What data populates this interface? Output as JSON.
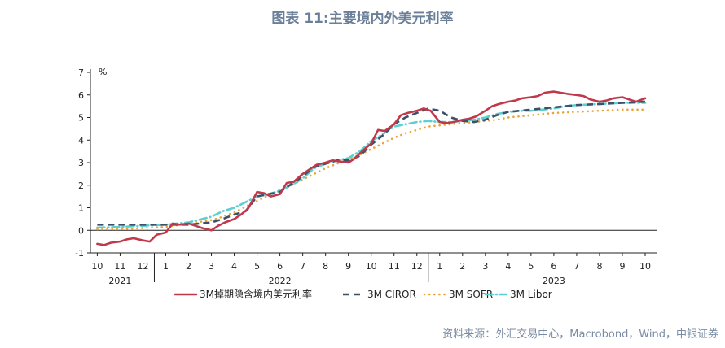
{
  "title": "图表 11:主要境内外美元利率",
  "source": "资料来源：外汇交易中心，Macrobond，Wind，中银证券",
  "colors": {
    "title": "#6b7f99",
    "series_1": "#c0394b",
    "series_2": "#3d4f6b",
    "series_3": "#e8a33c",
    "series_4": "#5bd0d0"
  },
  "chart_data": {
    "type": "line",
    "ylabel": "%",
    "ylim": [
      -1,
      7
    ],
    "yticks": [
      -1,
      0,
      1,
      2,
      3,
      4,
      5,
      6,
      7
    ],
    "xlim": [
      0,
      24.5
    ],
    "xticks": [
      {
        "x": 0,
        "label": "10"
      },
      {
        "x": 1,
        "label": "11"
      },
      {
        "x": 2,
        "label": "12"
      },
      {
        "x": 3,
        "label": "1"
      },
      {
        "x": 4,
        "label": "2"
      },
      {
        "x": 5,
        "label": "3"
      },
      {
        "x": 6,
        "label": "4"
      },
      {
        "x": 7,
        "label": "5"
      },
      {
        "x": 8,
        "label": "6"
      },
      {
        "x": 9,
        "label": "7"
      },
      {
        "x": 10,
        "label": "8"
      },
      {
        "x": 11,
        "label": "9"
      },
      {
        "x": 12,
        "label": "10"
      },
      {
        "x": 13,
        "label": "11"
      },
      {
        "x": 14,
        "label": "12"
      },
      {
        "x": 15,
        "label": "1"
      },
      {
        "x": 16,
        "label": "2"
      },
      {
        "x": 17,
        "label": "3"
      },
      {
        "x": 18,
        "label": "4"
      },
      {
        "x": 19,
        "label": "5"
      },
      {
        "x": 20,
        "label": "6"
      },
      {
        "x": 21,
        "label": "7"
      },
      {
        "x": 22,
        "label": "8"
      },
      {
        "x": 23,
        "label": "9"
      },
      {
        "x": 24,
        "label": "10"
      }
    ],
    "year_labels": [
      {
        "x": 1,
        "label": "2021"
      },
      {
        "x": 8,
        "label": "2022"
      },
      {
        "x": 20,
        "label": "2023"
      }
    ],
    "year_separators": [
      2.5,
      14.5
    ],
    "legend_placement": "bottom",
    "series": [
      {
        "name": "3M掉期隐含境内美元利率",
        "style": "solid",
        "x": [
          0,
          0.3,
          0.6,
          1,
          1.3,
          1.6,
          2,
          2.3,
          2.6,
          3,
          3.3,
          3.6,
          4,
          4.3,
          4.6,
          5,
          5.3,
          5.6,
          6,
          6.3,
          6.6,
          7,
          7.3,
          7.6,
          8,
          8.3,
          8.6,
          9,
          9.3,
          9.6,
          10,
          10.3,
          10.6,
          11,
          11.3,
          11.6,
          12,
          12.3,
          12.6,
          13,
          13.3,
          13.6,
          14,
          14.3,
          14.6,
          15,
          15.3,
          15.6,
          16,
          16.3,
          16.6,
          17,
          17.3,
          17.6,
          18,
          18.3,
          18.6,
          19,
          19.3,
          19.6,
          20,
          20.3,
          20.6,
          21,
          21.3,
          21.6,
          22,
          22.3,
          22.6,
          23,
          23.3,
          23.6,
          24
        ],
        "values": [
          -0.6,
          -0.65,
          -0.55,
          -0.5,
          -0.4,
          -0.35,
          -0.45,
          -0.5,
          -0.2,
          -0.1,
          0.3,
          0.25,
          0.3,
          0.2,
          0.1,
          0.0,
          0.2,
          0.35,
          0.5,
          0.7,
          0.95,
          1.7,
          1.65,
          1.5,
          1.6,
          2.1,
          2.15,
          2.5,
          2.7,
          2.9,
          3.0,
          3.1,
          3.05,
          3.0,
          3.2,
          3.5,
          3.85,
          4.45,
          4.4,
          4.7,
          5.1,
          5.2,
          5.3,
          5.4,
          5.3,
          4.8,
          4.75,
          4.8,
          4.9,
          4.95,
          5.05,
          5.3,
          5.5,
          5.6,
          5.7,
          5.75,
          5.85,
          5.9,
          5.95,
          6.1,
          6.15,
          6.1,
          6.05,
          6.0,
          5.95,
          5.8,
          5.7,
          5.75,
          5.85,
          5.9,
          5.8,
          5.7,
          5.85
        ]
      },
      {
        "name": "3M CIROR",
        "style": "dashed",
        "x": [
          0,
          1,
          2,
          3,
          4,
          5,
          5.5,
          6,
          6.5,
          7,
          7.5,
          8,
          8.5,
          9,
          9.5,
          10,
          10.5,
          11,
          11.5,
          12,
          12.5,
          13,
          13.5,
          14,
          14.5,
          15,
          15.5,
          16,
          16.5,
          17,
          17.5,
          18,
          19,
          20,
          21,
          22,
          23,
          24
        ],
        "values": [
          0.25,
          0.25,
          0.25,
          0.25,
          0.25,
          0.35,
          0.5,
          0.7,
          0.85,
          1.5,
          1.6,
          1.7,
          2.05,
          2.4,
          2.8,
          2.95,
          3.1,
          3.1,
          3.3,
          3.8,
          4.2,
          4.7,
          5.0,
          5.2,
          5.4,
          5.3,
          5.0,
          4.85,
          4.8,
          4.9,
          5.1,
          5.25,
          5.35,
          5.45,
          5.55,
          5.6,
          5.65,
          5.7
        ]
      },
      {
        "name": "3M SOFR",
        "style": "dotted",
        "x": [
          0,
          1,
          2,
          3,
          4,
          5,
          5.5,
          6,
          6.5,
          7,
          7.5,
          8,
          8.5,
          9,
          9.5,
          10,
          10.5,
          11,
          11.5,
          12,
          12.5,
          13,
          13.5,
          14,
          14.5,
          15,
          15.5,
          16,
          16.5,
          17,
          17.5,
          18,
          18.5,
          19,
          19.5,
          20,
          21,
          22,
          23,
          24
        ],
        "values": [
          0.05,
          0.05,
          0.1,
          0.15,
          0.3,
          0.45,
          0.6,
          0.8,
          1.05,
          1.3,
          1.55,
          1.8,
          2.0,
          2.25,
          2.5,
          2.75,
          2.95,
          3.15,
          3.35,
          3.6,
          3.85,
          4.1,
          4.3,
          4.45,
          4.6,
          4.65,
          4.7,
          4.75,
          4.8,
          4.85,
          4.9,
          5.0,
          5.05,
          5.1,
          5.15,
          5.2,
          5.25,
          5.3,
          5.35,
          5.35
        ]
      },
      {
        "name": "3M Libor",
        "style": "dashdot",
        "x": [
          0,
          1,
          2,
          3,
          4,
          5,
          5.5,
          6,
          6.5,
          7,
          7.5,
          8,
          8.5,
          9,
          9.5,
          10,
          10.5,
          11,
          11.5,
          12,
          12.5,
          13,
          13.5,
          14,
          14.5,
          15,
          15.5,
          16,
          16.5,
          17,
          17.5,
          18,
          18.5,
          19,
          19.5,
          20,
          20.5,
          21,
          22,
          23,
          24
        ],
        "values": [
          0.12,
          0.15,
          0.2,
          0.25,
          0.35,
          0.6,
          0.85,
          1.0,
          1.25,
          1.5,
          1.6,
          1.75,
          2.0,
          2.3,
          2.75,
          2.95,
          3.1,
          3.2,
          3.5,
          3.95,
          4.25,
          4.6,
          4.7,
          4.8,
          4.85,
          4.8,
          4.8,
          4.85,
          4.9,
          5.0,
          5.15,
          5.25,
          5.3,
          5.3,
          5.35,
          5.4,
          5.5,
          5.55,
          5.6,
          5.65,
          5.65
        ]
      }
    ]
  }
}
